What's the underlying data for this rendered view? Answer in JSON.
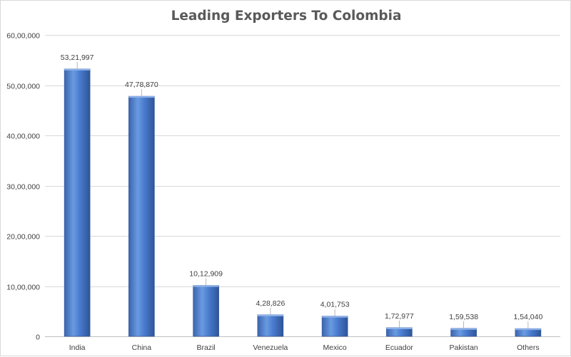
{
  "chart_data": {
    "type": "bar",
    "title": "Leading Exporters To Colombia",
    "xlabel": "",
    "ylabel": "",
    "categories": [
      "India",
      "China",
      "Brazil",
      "Venezuela",
      "Mexico",
      "Ecuador",
      "Pakistan",
      "Others"
    ],
    "values": [
      5321997,
      4778870,
      1012909,
      428826,
      401753,
      172977,
      159538,
      154040
    ],
    "data_labels": [
      "53,21,997",
      "47,78,870",
      "10,12,909",
      "4,28,826",
      "4,01,753",
      "1,72,977",
      "1,59,538",
      "1,54,040"
    ],
    "ylim": [
      0,
      6000000
    ],
    "yticks": [
      0,
      1000000,
      2000000,
      3000000,
      4000000,
      5000000,
      6000000
    ],
    "ytick_labels": [
      "0",
      "10,00,000",
      "20,00,000",
      "30,00,000",
      "40,00,000",
      "50,00,000",
      "60,00,000"
    ],
    "grid": true,
    "legend": "none",
    "colors": {
      "bar_light": "#6a9be0",
      "bar_mid": "#4472c4",
      "bar_dark": "#2e5597",
      "grid": "#d9d9d9",
      "text": "#404040"
    }
  }
}
